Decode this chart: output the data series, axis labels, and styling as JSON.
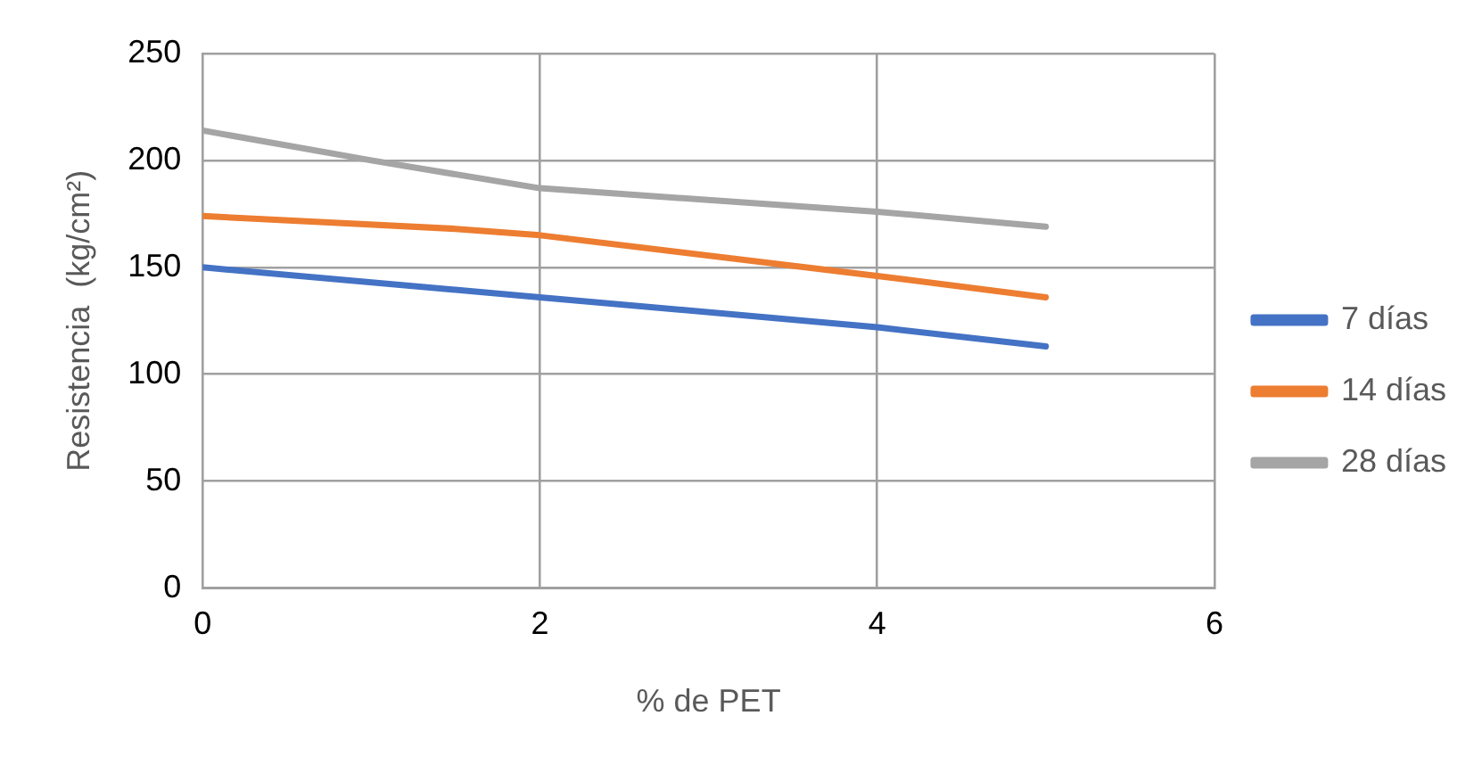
{
  "chart_data": {
    "type": "line",
    "xlabel": "% de PET",
    "ylabel": "Resistencia  (kg/cm²)",
    "xlim": [
      0,
      6
    ],
    "xticks": [
      0,
      2,
      4,
      6
    ],
    "ylim": [
      0,
      250
    ],
    "yticks": [
      0,
      50,
      100,
      150,
      200,
      250
    ],
    "grid": true,
    "legend": "right",
    "series": [
      {
        "name": "7 días",
        "color": "#4472c4",
        "x": [
          0,
          2,
          4,
          5
        ],
        "values": [
          150,
          136,
          122,
          113
        ]
      },
      {
        "name": "14 días",
        "color": "#ed7d31",
        "x": [
          0,
          1.5,
          2,
          4,
          5
        ],
        "values": [
          174,
          168,
          165,
          146,
          136
        ]
      },
      {
        "name": "28 días",
        "color": "#a5a5a5",
        "x": [
          0,
          1,
          2,
          4,
          5
        ],
        "values": [
          214,
          200,
          187,
          176,
          169
        ]
      }
    ]
  }
}
